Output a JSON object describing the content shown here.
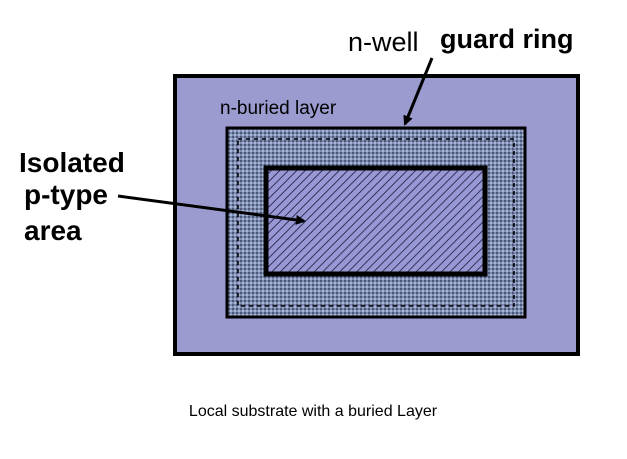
{
  "labels": {
    "nwell": "n-well",
    "guard_ring": "guard ring",
    "buried_layer": "n-buried layer",
    "isolated_line1": "Isolated",
    "isolated_line2": "p-type",
    "isolated_line3": "area"
  },
  "caption": "Local substrate with a buried Layer",
  "colors": {
    "substrate_fill": "#9b9bd0",
    "guard_ring_fill": "#7888b0",
    "p_area_fill": "#9898d4",
    "outline": "#000000"
  }
}
